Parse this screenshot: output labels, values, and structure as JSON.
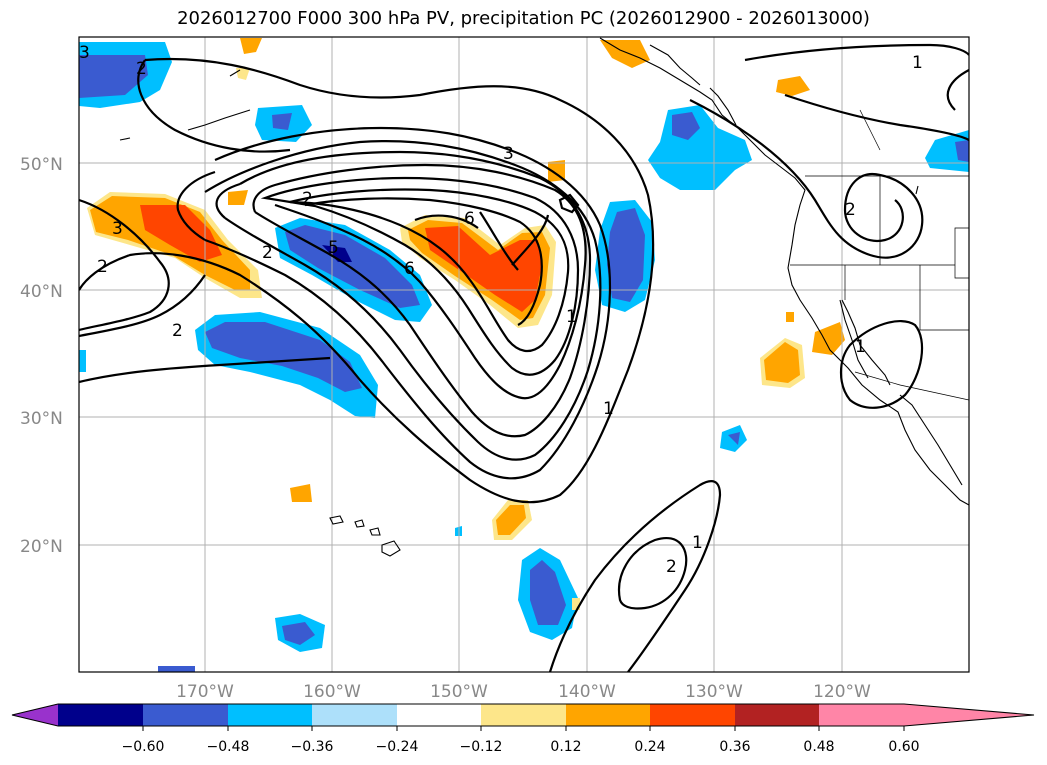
{
  "title": "2026012700 F000 300 hPa PV, precipitation PC (2026012900 - 2026013000)",
  "map": {
    "lon_labels": [
      "170°W",
      "160°W",
      "150°W",
      "140°W",
      "130°W",
      "120°W"
    ],
    "lat_labels": [
      "50°N",
      "40°N",
      "30°N",
      "20°N"
    ],
    "pv_contour_labels": [
      "3",
      "2",
      "3",
      "2",
      "3",
      "2",
      "5",
      "6",
      "6",
      "1",
      "1",
      "2",
      "1",
      "1",
      "2",
      "1",
      "2",
      "2"
    ]
  },
  "colorbar": {
    "tick_labels": [
      "−0.60",
      "−0.48",
      "−0.36",
      "−0.24",
      "−0.12",
      "0.12",
      "0.24",
      "0.36",
      "0.48",
      "0.60"
    ],
    "colors": [
      "#9932cc",
      "#00008b",
      "#3a5bd0",
      "#00bfff",
      "#ade0fa",
      "#ffffff",
      "#fde68a",
      "#ffa500",
      "#ff4500",
      "#b22222",
      "#ff85a7"
    ]
  },
  "colors": {
    "neg_strong": "#3a5bd0",
    "neg_mid": "#00bfff",
    "neg_weak": "#ade0fa",
    "neg_max": "#00008b",
    "pos_weak": "#fde68a",
    "pos_mid": "#ffa500",
    "pos_strong": "#ff4500"
  }
}
